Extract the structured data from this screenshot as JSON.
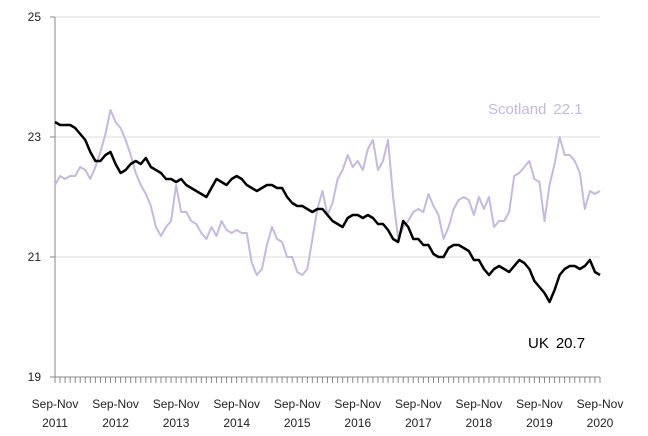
{
  "chart_data": {
    "type": "line",
    "categories": [
      "Sep-Nov 2011",
      null,
      null,
      null,
      null,
      null,
      null,
      null,
      null,
      null,
      null,
      null,
      "Sep-Nov 2012",
      null,
      null,
      null,
      null,
      null,
      null,
      null,
      null,
      null,
      null,
      null,
      "Sep-Nov 2013",
      null,
      null,
      null,
      null,
      null,
      null,
      null,
      null,
      null,
      null,
      null,
      "Sep-Nov 2014",
      null,
      null,
      null,
      null,
      null,
      null,
      null,
      null,
      null,
      null,
      null,
      "Sep-Nov 2015",
      null,
      null,
      null,
      null,
      null,
      null,
      null,
      null,
      null,
      null,
      null,
      "Sep-Nov 2016",
      null,
      null,
      null,
      null,
      null,
      null,
      null,
      null,
      null,
      null,
      null,
      "Sep-Nov 2017",
      null,
      null,
      null,
      null,
      null,
      null,
      null,
      null,
      null,
      null,
      null,
      "Sep-Nov 2018",
      null,
      null,
      null,
      null,
      null,
      null,
      null,
      null,
      null,
      null,
      null,
      "Sep-Nov 2019",
      null,
      null,
      null,
      null,
      null,
      null,
      null,
      null,
      null,
      null,
      null,
      "Sep-Nov 2020"
    ],
    "series": [
      {
        "name": "Scotland",
        "color": "#c6b9de",
        "values": [
          22.2,
          22.35,
          22.3,
          22.35,
          22.35,
          22.5,
          22.45,
          22.3,
          22.5,
          22.75,
          23.05,
          23.45,
          23.25,
          23.15,
          22.95,
          22.7,
          22.4,
          22.2,
          22.05,
          21.85,
          21.5,
          21.35,
          21.5,
          21.6,
          22.2,
          21.75,
          21.75,
          21.6,
          21.55,
          21.4,
          21.3,
          21.5,
          21.35,
          21.6,
          21.45,
          21.4,
          21.45,
          21.4,
          21.4,
          20.9,
          20.7,
          20.8,
          21.2,
          21.5,
          21.3,
          21.25,
          21.0,
          21.0,
          20.75,
          20.7,
          20.8,
          21.3,
          21.8,
          22.1,
          21.7,
          21.9,
          22.3,
          22.45,
          22.7,
          22.5,
          22.6,
          22.45,
          22.8,
          22.95,
          22.45,
          22.6,
          22.95,
          22.0,
          21.3,
          21.5,
          21.6,
          21.75,
          21.8,
          21.75,
          22.05,
          21.85,
          21.7,
          21.3,
          21.5,
          21.8,
          21.95,
          22.0,
          21.95,
          21.7,
          22.0,
          21.8,
          22.0,
          21.5,
          21.6,
          21.6,
          21.75,
          22.35,
          22.4,
          22.5,
          22.6,
          22.3,
          22.25,
          21.6,
          22.2,
          22.55,
          23.0,
          22.7,
          22.7,
          22.6,
          22.4,
          21.8,
          22.1,
          22.05,
          22.1
        ]
      },
      {
        "name": "UK",
        "color": "#000000",
        "values": [
          23.25,
          23.2,
          23.2,
          23.2,
          23.15,
          23.05,
          22.95,
          22.75,
          22.6,
          22.6,
          22.7,
          22.75,
          22.55,
          22.4,
          22.45,
          22.55,
          22.6,
          22.55,
          22.65,
          22.5,
          22.45,
          22.4,
          22.3,
          22.3,
          22.25,
          22.3,
          22.2,
          22.15,
          22.1,
          22.05,
          22.0,
          22.15,
          22.3,
          22.25,
          22.2,
          22.3,
          22.35,
          22.3,
          22.2,
          22.15,
          22.1,
          22.15,
          22.2,
          22.2,
          22.15,
          22.15,
          22.0,
          21.9,
          21.85,
          21.85,
          21.8,
          21.75,
          21.8,
          21.8,
          21.7,
          21.6,
          21.55,
          21.5,
          21.65,
          21.7,
          21.7,
          21.65,
          21.7,
          21.65,
          21.55,
          21.55,
          21.45,
          21.3,
          21.25,
          21.6,
          21.5,
          21.3,
          21.3,
          21.2,
          21.2,
          21.05,
          21.0,
          21.0,
          21.15,
          21.2,
          21.2,
          21.15,
          21.1,
          20.95,
          20.95,
          20.8,
          20.7,
          20.8,
          20.85,
          20.8,
          20.75,
          20.85,
          20.95,
          20.9,
          20.8,
          20.6,
          20.5,
          20.4,
          20.25,
          20.45,
          20.7,
          20.8,
          20.85,
          20.85,
          20.8,
          20.85,
          20.95,
          20.75,
          20.7
        ]
      }
    ],
    "ylim": [
      19,
      25
    ],
    "yticks": [
      19,
      21,
      23,
      25
    ],
    "grid": true
  }
}
